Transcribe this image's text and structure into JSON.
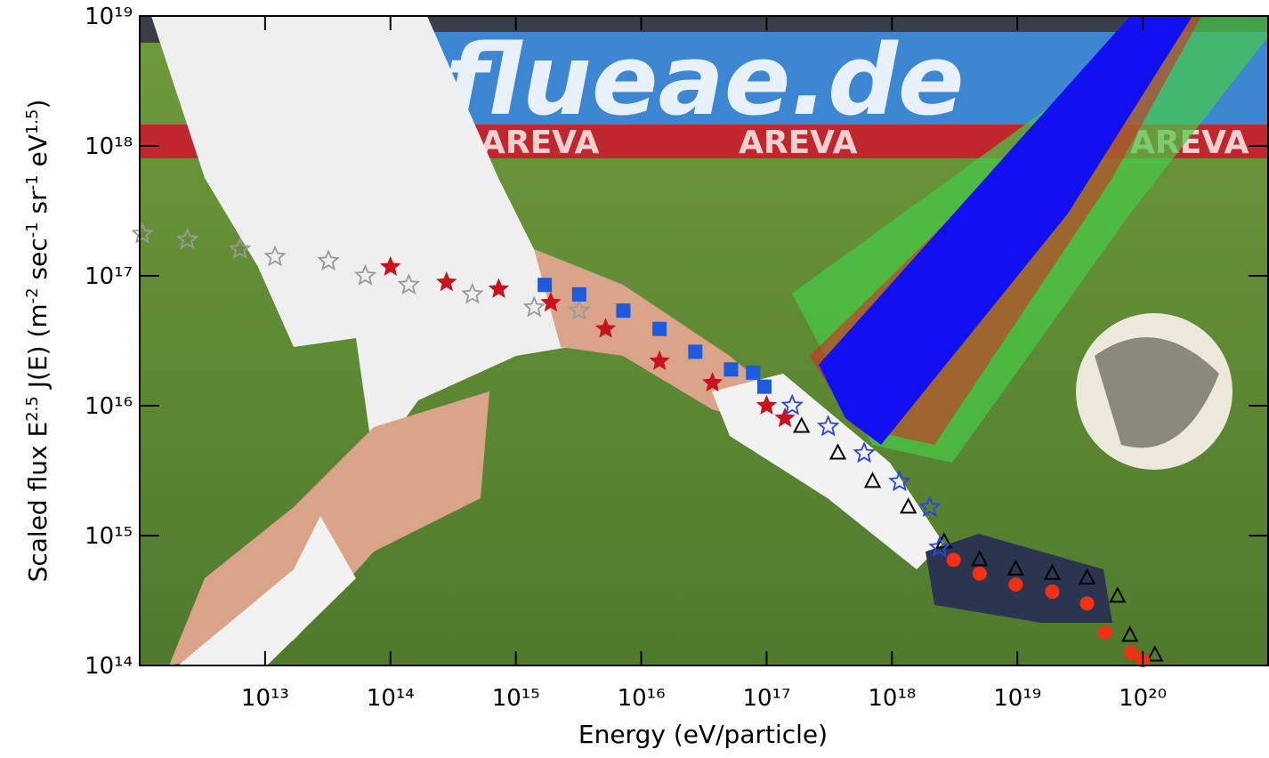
{
  "photo": {
    "banner": "flueae.de",
    "sponsor": [
      "AREVA",
      "AREVA",
      "AREVA"
    ]
  },
  "chart_data": {
    "type": "scatter",
    "xlabel": "Energy     (eV/particle)",
    "ylabel": [
      "Scaled flux  E",
      "2.5",
      " J(E)  (m",
      "-2",
      " sec",
      "-1",
      " sr",
      "-1",
      " eV",
      "1.5",
      ")"
    ],
    "xscale": "log",
    "yscale": "log",
    "xlim": [
      1000000000000.0,
      1e+21
    ],
    "ylim": [
      100000000000000.0,
      1e+19
    ],
    "xticks": [
      {
        "value": 10000000000000.0,
        "label": "10¹³"
      },
      {
        "value": 100000000000000.0,
        "label": "10¹⁴"
      },
      {
        "value": 1000000000000000.0,
        "label": "10¹⁵"
      },
      {
        "value": 1e+16,
        "label": "10¹⁶"
      },
      {
        "value": 1e+17,
        "label": "10¹⁷"
      },
      {
        "value": 1e+18,
        "label": "10¹⁸"
      },
      {
        "value": 1e+19,
        "label": "10¹⁹"
      },
      {
        "value": 1e+20,
        "label": "10²⁰"
      }
    ],
    "yticks": [
      {
        "value": 100000000000000.0,
        "label": "10¹⁴"
      },
      {
        "value": 1000000000000000.0,
        "label": "10¹⁵"
      },
      {
        "value": 1e+16,
        "label": "10¹⁶"
      },
      {
        "value": 1e+17,
        "label": "10¹⁷"
      },
      {
        "value": 1e+18,
        "label": "10¹⁸"
      },
      {
        "value": 1e+19,
        "label": "10¹⁹"
      }
    ],
    "series": [
      {
        "color": "#9a9a9a",
        "marker": "open-star",
        "x": [
          1050000000000.0,
          2400000000000.0,
          6300000000000.0,
          12000000000000.0,
          32000000000000.0,
          63000000000000.0,
          140000000000000.0,
          450000000000000.0,
          1400000000000000.0,
          3200000000000000.0
        ],
        "values": [
          2.1e+17,
          1.9e+17,
          1.6e+17,
          1.4e+17,
          1.3e+17,
          1e+17,
          8.5e+16,
          7.2e+16,
          5.7e+16,
          5.4e+16
        ]
      },
      {
        "color": "#c8141e",
        "marker": "star",
        "x": [
          100000000000000.0,
          280000000000000.0,
          730000000000000.0,
          1900000000000000.0,
          5200000000000000.0,
          1.4e+16,
          3.7e+16,
          1e+17,
          1.4e+17
        ],
        "values": [
          1.17e+17,
          8.9e+16,
          7.9e+16,
          6.2e+16,
          3.9e+16,
          2.2e+16,
          1.5e+16,
          1e+16,
          8000000000000000.0
        ]
      },
      {
        "color": "#1e5adc",
        "marker": "square",
        "x": [
          1700000000000000.0,
          3200000000000000.0,
          7200000000000000.0,
          1.4e+16,
          2.7e+16,
          5.2e+16,
          7.8e+16,
          9.6e+16
        ],
        "values": [
          8.5e+16,
          7.2e+16,
          5.4e+16,
          3.9e+16,
          2.6e+16,
          1.9e+16,
          1.8e+16,
          1.4e+16
        ]
      },
      {
        "color": "#000000",
        "marker": "triangle",
        "x": [
          1.9e+17,
          3.7e+17,
          7e+17,
          1.35e+18,
          2.6e+18,
          5e+18,
          9.7e+18,
          1.9e+19,
          3.6e+19,
          6.3e+19,
          7.9e+19,
          1.25e+20
        ],
        "values": [
          6900000000000000.0,
          4300000000000000.0,
          2600000000000000.0,
          1650000000000000.0,
          890000000000000.0,
          650000000000000.0,
          550000000000000.0,
          510000000000000.0,
          470000000000000.0,
          340000000000000.0,
          170000000000000.0,
          120000000000000.0
        ]
      },
      {
        "color": "#2846e6",
        "marker": "open-star",
        "x": [
          1.6e+17,
          3.1e+17,
          6e+17,
          1.15e+18,
          2e+18,
          2.4e+18
        ],
        "values": [
          1e+16,
          6900000000000000.0,
          4300000000000000.0,
          2600000000000000.0,
          1650000000000000.0,
          810000000000000.0
        ]
      },
      {
        "color": "#f03214",
        "marker": "circle",
        "x": [
          3.1e+18,
          5e+18,
          9.7e+18,
          1.9e+19,
          3.6e+19,
          5e+19,
          8.1e+19,
          1e+20
        ],
        "values": [
          650000000000000.0,
          510000000000000.0,
          420000000000000.0,
          370000000000000.0,
          300000000000000.0,
          180000000000000.0,
          125000000000000.0,
          110000000000000.0
        ]
      }
    ]
  }
}
